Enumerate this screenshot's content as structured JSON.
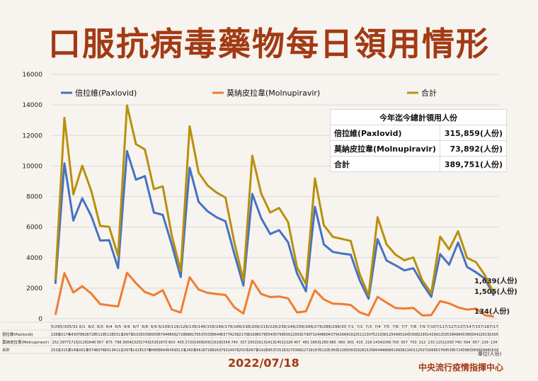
{
  "title": "口服抗病毒藥物每日領用情形",
  "date": "2022/07/18",
  "agency": "中央流行疫情指揮中心",
  "unit_note": "單位(人份)",
  "totals_table": {
    "header": "今年迄今總計領用人份",
    "rows": [
      {
        "label": "倍拉維(Paxlovid)",
        "value": "315,859(人份)"
      },
      {
        "label": "莫納皮拉韋(Molnupiravir)",
        "value": "73,892(人份)"
      },
      {
        "label": "合計",
        "value": "389,751(人份)"
      }
    ]
  },
  "end_labels": {
    "total": "1,639(人份)",
    "paxlovid": "1,505(人份)",
    "molnupiravir": "134(人份)"
  },
  "colors": {
    "paxlovid": "#4472c4",
    "molnupiravir": "#ed7d31",
    "total": "#b8900c",
    "title": "#a23a14"
  },
  "chart_data": {
    "type": "line",
    "y_ticks": [
      "0",
      "2000",
      "4000",
      "6000",
      "8000",
      "10000",
      "12000",
      "14000",
      "16000"
    ],
    "ylim": [
      0,
      16000
    ],
    "grid": true,
    "legend_position": "top",
    "categories": [
      "5/29",
      "5/30",
      "5/31",
      "6/1",
      "6/2",
      "6/3",
      "6/4",
      "6/5",
      "6/6",
      "6/7",
      "6/8",
      "6/9",
      "6/10",
      "6/11",
      "6/12",
      "6/13",
      "6/14",
      "6/15",
      "6/16",
      "6/17",
      "6/18",
      "6/19",
      "6/20",
      "6/21",
      "6/22",
      "6/23",
      "6/24",
      "6/25",
      "6/26",
      "6/27",
      "6/28",
      "6/29",
      "6/30",
      "7/1",
      "7/2",
      "7/3",
      "7/4",
      "7/5",
      "7/6",
      "7/7",
      "7/8",
      "7/9",
      "7/10",
      "7/11",
      "7/12",
      "7/13",
      "7/14",
      "7/15",
      "7/16",
      "7/17"
    ],
    "row_labels": [
      "倍拉維(Paxlovid)",
      "莫納皮拉韋(Molnupiravir)",
      "合計"
    ],
    "series": [
      {
        "name": "倍拉維(Paxlovid)",
        "key": "paxlovid",
        "values": [
          2280,
          10174,
          6430,
          7882,
          6728,
          5119,
          5138,
          3313,
          10971,
          9102,
          9335,
          6950,
          6794,
          4856,
          2728,
          9881,
          7653,
          7035,
          6644,
          6377,
          4236,
          2170,
          8169,
          6579,
          5540,
          5799,
          5001,
          2959,
          1790,
          7324,
          4860,
          4375,
          4266,
          4192,
          2511,
          1307,
          5210,
          3812,
          3499,
          3164,
          3308,
          2295,
          1433,
          4225,
          3539,
          4984,
          3389,
          3042,
          2619,
          1505
        ]
      },
      {
        "name": "莫納皮拉韋(Molnupiravir)",
        "key": "molnupiravir",
        "values": [
          252,
          2977,
          1715,
          2129,
          1646,
          957,
          875,
          798,
          3004,
          2325,
          1743,
          1535,
          1870,
          603,
          405,
          2720,
          1908,
          1691,
          1619,
          1554,
          740,
          337,
          2502,
          1613,
          1413,
          1452,
          1326,
          407,
          481,
          1863,
          1260,
          985,
          960,
          901,
          415,
          218,
          1434,
          1056,
          700,
          657,
          703,
          212,
          233,
          1151,
          1000,
          740,
          594,
          657,
          229,
          134
        ]
      },
      {
        "name": "合計",
        "key": "total",
        "values": [
          2532,
          13151,
          8145,
          10011,
          8374,
          6076,
          6013,
          4111,
          13975,
          11427,
          11078,
          8485,
          8664,
          5459,
          3133,
          12601,
          9561,
          8726,
          8263,
          7931,
          4976,
          2507,
          10671,
          8192,
          6953,
          7251,
          6327,
          3366,
          2271,
          9187,
          6120,
          5360,
          5226,
          5093,
          2926,
          1525,
          6644,
          4868,
          4199,
          3821,
          4011,
          2507,
          1666,
          5376,
          4539,
          5724,
          3983,
          3699,
          2848,
          1639
        ]
      }
    ]
  }
}
